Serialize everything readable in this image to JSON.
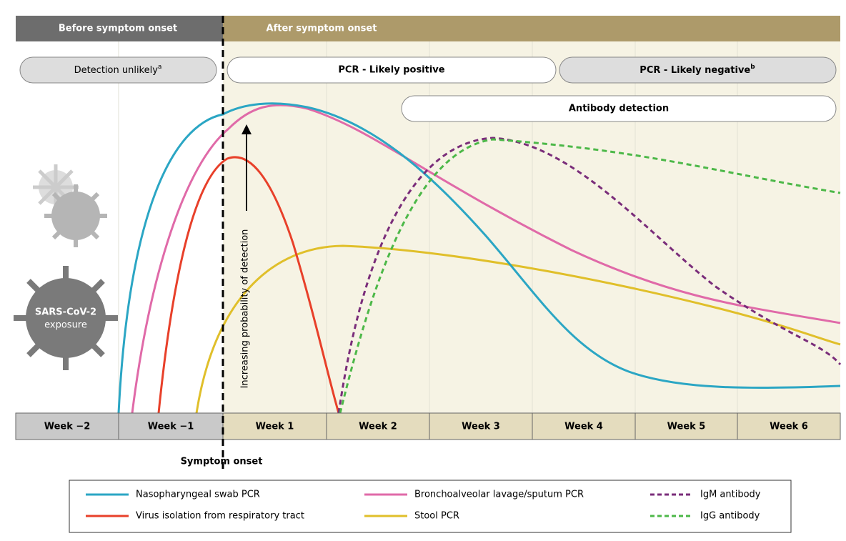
{
  "header": {
    "before": "Before symptom onset",
    "after": "After symptom onset"
  },
  "pills": {
    "detection_unlikely": {
      "text": "Detection unlikely",
      "note": "a"
    },
    "pcr_positive": {
      "text": "PCR - Likely positive"
    },
    "pcr_negative": {
      "text": "PCR - Likely negative",
      "note": "b"
    },
    "antibody": {
      "text": "Antibody detection"
    }
  },
  "arrow_label": "Increasing probability of detection",
  "virus": {
    "line1": "SARS-CoV-2",
    "line2": "exposure"
  },
  "weeks": [
    "Week −2",
    "Week −1",
    "Week 1",
    "Week 2",
    "Week 3",
    "Week 4",
    "Week 5",
    "Week 6"
  ],
  "symptom_onset": "Symptom onset",
  "legend": [
    "Nasopharyngeal swab PCR",
    "Virus isolation from respiratory tract",
    "Bronchoalveolar lavage/sputum PCR",
    "Stool PCR",
    "IgM antibody",
    "IgG antibody"
  ]
}
